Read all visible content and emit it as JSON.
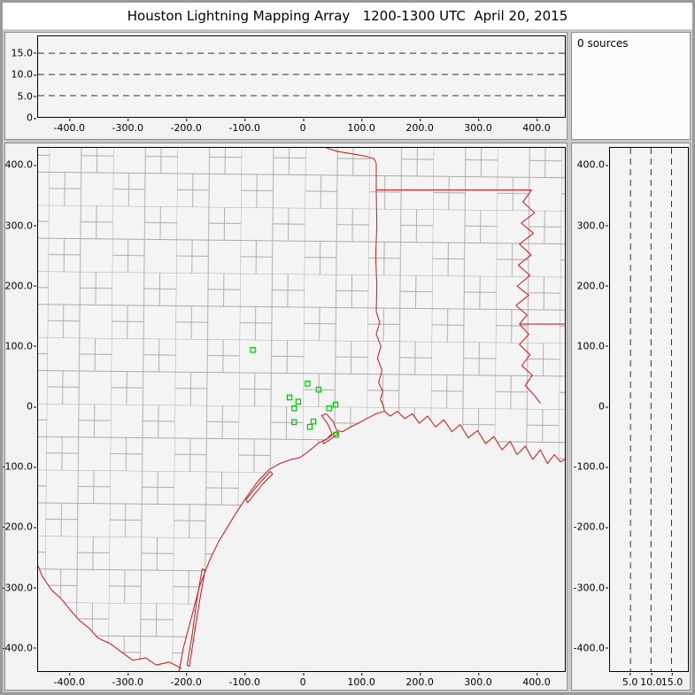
{
  "window": {
    "title": "Houston Lightning Mapping Array   1200-1300 UTC  April 20, 2015"
  },
  "status": {
    "sources_label": "0 sources"
  },
  "chart_data": {
    "type": "scatter",
    "title": "Houston Lightning Mapping Array   1200-1300 UTC  April 20, 2015",
    "time_range_utc": "1200-1300 UTC",
    "date": "April 20, 2015",
    "source_count": 0,
    "panels": [
      {
        "id": "alt_ew",
        "role": "altitude (km) vs east-west distance (km)",
        "points": []
      },
      {
        "id": "plan",
        "role": "plan view map with county and state borders and LMA stations",
        "points": []
      },
      {
        "id": "alt_ns",
        "role": "altitude (km) vs north-south distance (km)",
        "points": []
      }
    ],
    "axes": {
      "ew_range_km": [
        -455,
        450
      ],
      "ns_range_km": [
        -440,
        430
      ],
      "alt_range_km": [
        0,
        19
      ],
      "alt_gridlines_km": [
        5,
        10,
        15
      ],
      "grid": "dashed altitude reference lines",
      "legend": "none"
    },
    "ticks": {
      "ew_km": {
        "values": [
          -400,
          -300,
          -200,
          -100,
          0,
          100,
          200,
          300,
          400
        ],
        "labels": [
          "-400.0",
          "-300.0",
          "-200.0",
          "-100.0",
          "0",
          "100.0",
          "200.0",
          "300.0",
          "400.0"
        ]
      },
      "ns_km": {
        "values": [
          400,
          300,
          200,
          100,
          0,
          -100,
          -200,
          -300,
          -400
        ],
        "labels": [
          "400.0",
          "300.0",
          "200.0",
          "100.0",
          "0",
          "-100.0",
          "-200.0",
          "-300.0",
          "-400.0"
        ]
      },
      "alt_km": {
        "values": [
          5,
          10,
          15
        ],
        "labels": [
          "5.0",
          "10.0",
          "15.0"
        ]
      },
      "alt_y_km": {
        "values": [
          15,
          10,
          5,
          0
        ],
        "labels": [
          "15.0",
          "10.0",
          "5.0",
          "0"
        ]
      }
    },
    "stations_km": [
      [
        -86,
        94
      ],
      [
        8,
        38
      ],
      [
        27,
        28
      ],
      [
        -23,
        15
      ],
      [
        -8,
        8
      ],
      [
        -15,
        -3
      ],
      [
        45,
        -3
      ],
      [
        56,
        3
      ],
      [
        -15,
        -26
      ],
      [
        12,
        -34
      ],
      [
        18,
        -25
      ],
      [
        57,
        -47
      ]
    ],
    "colors": {
      "station": "#00c800",
      "state_border": "#cc2222",
      "county_border": "#aaaaaa",
      "water_mask": "#f2f2f2",
      "grid_dash": "#333333"
    }
  }
}
